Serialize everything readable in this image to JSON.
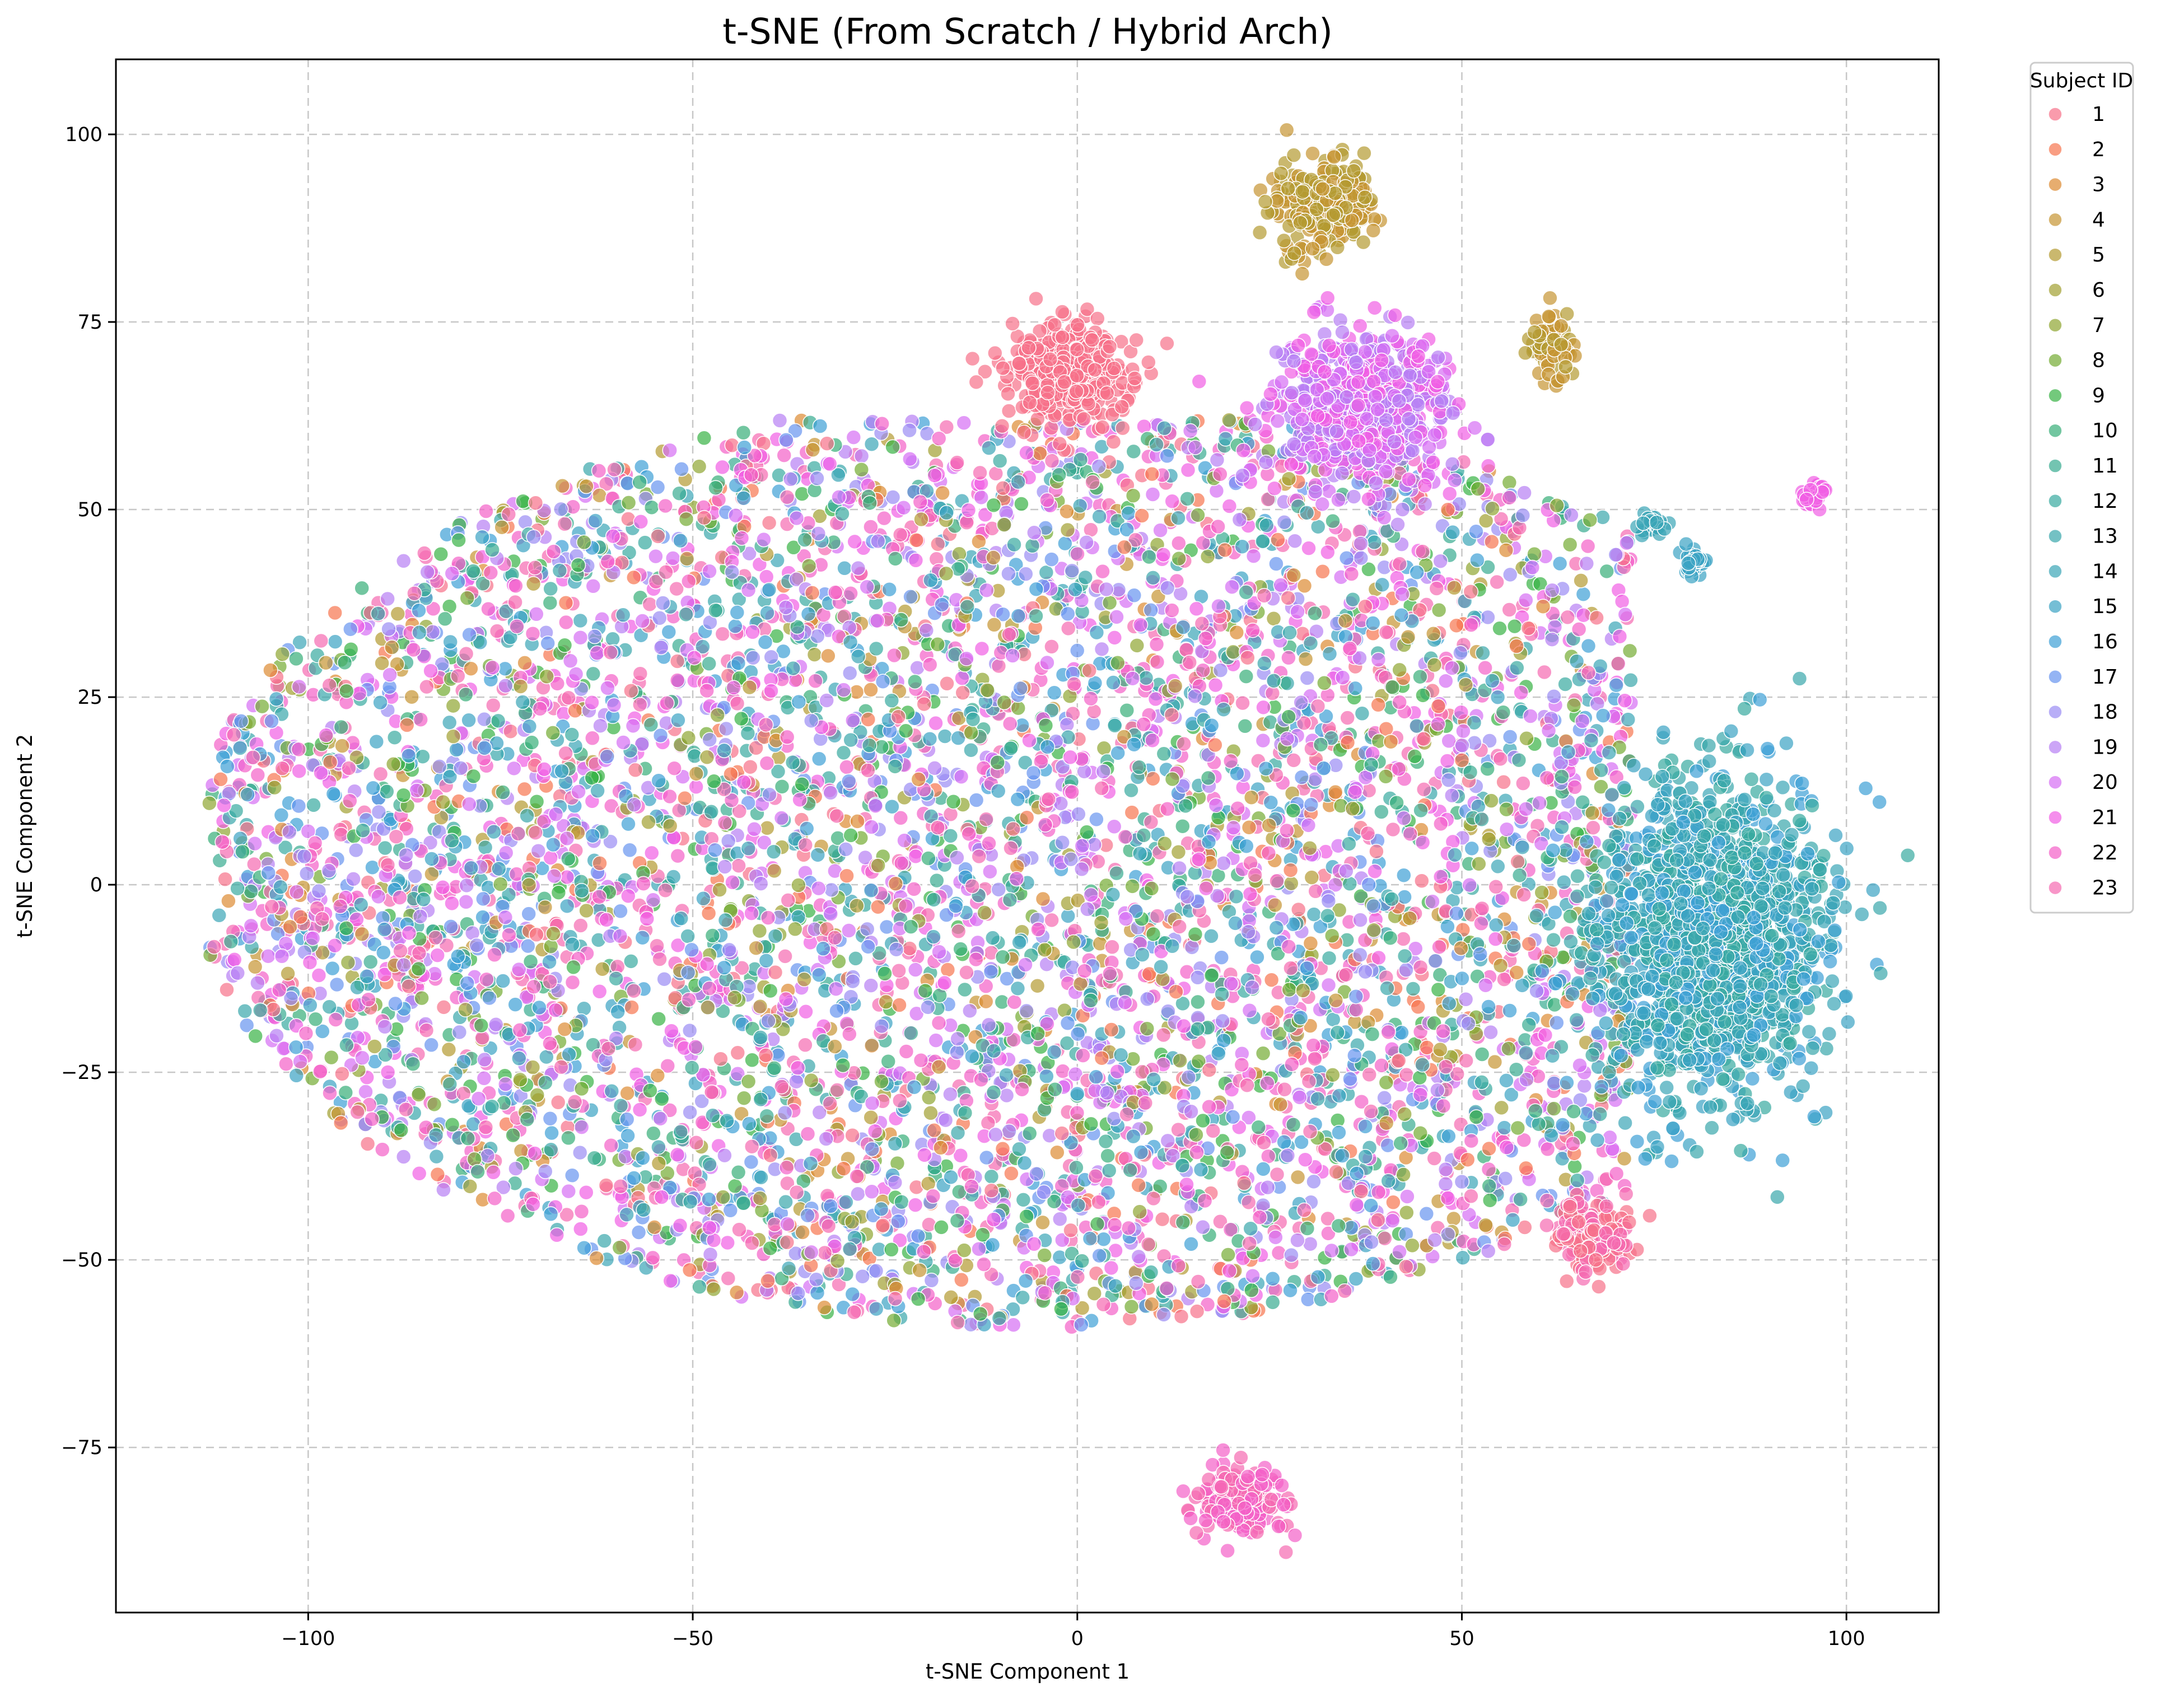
{
  "chart_data": {
    "type": "scatter",
    "title": "t-SNE (From Scratch / Hybrid Arch)",
    "xlabel": "t-SNE Component 1",
    "ylabel": "t-SNE Component 2",
    "xlim": [
      -125,
      112
    ],
    "ylim": [
      -97,
      110
    ],
    "xticks": [
      -100,
      -50,
      0,
      50,
      100
    ],
    "yticks": [
      -75,
      -50,
      -25,
      0,
      25,
      50,
      75,
      100
    ],
    "xtick_labels": [
      "−100",
      "−50",
      "0",
      "50",
      "100"
    ],
    "ytick_labels": [
      "−75",
      "−50",
      "−25",
      "0",
      "25",
      "50",
      "75",
      "100"
    ],
    "grid": true,
    "grid_style": "dashed",
    "legend": {
      "title": "Subject ID",
      "placement": "outside-top-right",
      "entries": [
        {
          "label": "1",
          "color": "#f77189"
        },
        {
          "label": "2",
          "color": "#f7754f"
        },
        {
          "label": "3",
          "color": "#dd8a32"
        },
        {
          "label": "4",
          "color": "#c69432"
        },
        {
          "label": "5",
          "color": "#b39a31"
        },
        {
          "label": "6",
          "color": "#a19f31"
        },
        {
          "label": "7",
          "color": "#8fa531"
        },
        {
          "label": "8",
          "color": "#73ab32"
        },
        {
          "label": "9",
          "color": "#37b244"
        },
        {
          "label": "10",
          "color": "#36ae78"
        },
        {
          "label": "11",
          "color": "#37ab90"
        },
        {
          "label": "12",
          "color": "#38a99f"
        },
        {
          "label": "13",
          "color": "#39a7ab"
        },
        {
          "label": "14",
          "color": "#3aa5b7"
        },
        {
          "label": "15",
          "color": "#3ba3c3"
        },
        {
          "label": "16",
          "color": "#3d9fd5"
        },
        {
          "label": "17",
          "color": "#6694ef"
        },
        {
          "label": "18",
          "color": "#9a8bf4"
        },
        {
          "label": "19",
          "color": "#b77ff4"
        },
        {
          "label": "20",
          "color": "#d66ef3"
        },
        {
          "label": "21",
          "color": "#f15ee4"
        },
        {
          "label": "22",
          "color": "#f45fc7"
        },
        {
          "label": "23",
          "color": "#f56ab0"
        }
      ]
    },
    "marker_opacity": 0.7,
    "marker_edgecolor": "#ffffff",
    "series_note_clusters": [
      {
        "name": "main-mass",
        "subjects": "mixed 1-23",
        "center": [
          -5,
          5
        ],
        "spread": [
          48,
          30
        ]
      },
      {
        "name": "teal-blue-right",
        "subjects": [
          "12",
          "13",
          "14",
          "15",
          "16"
        ],
        "center": [
          82,
          -7
        ],
        "spread": [
          9,
          13
        ]
      },
      {
        "name": "magenta-upper",
        "subjects": [
          "19",
          "20",
          "21"
        ],
        "center": [
          37,
          64
        ],
        "spread": [
          7,
          6
        ]
      },
      {
        "name": "pink-upper",
        "subjects": [
          "1"
        ],
        "center": [
          -1,
          68
        ],
        "spread": [
          5,
          4
        ]
      },
      {
        "name": "gold-top",
        "subjects": [
          "4",
          "5"
        ],
        "center": [
          32,
          90
        ],
        "spread": [
          4,
          4
        ]
      },
      {
        "name": "gold-right",
        "subjects": [
          "4",
          "5"
        ],
        "center": [
          62,
          72
        ],
        "spread": [
          2,
          3
        ]
      },
      {
        "name": "small-teal-a",
        "subjects": [
          "14"
        ],
        "center": [
          75,
          48
        ],
        "spread": [
          1,
          1
        ]
      },
      {
        "name": "small-teal-b",
        "subjects": [
          "15"
        ],
        "center": [
          80,
          43
        ],
        "spread": [
          1,
          1.5
        ]
      },
      {
        "name": "small-pink-far-right",
        "subjects": [
          "21"
        ],
        "center": [
          96,
          52
        ],
        "spread": [
          1,
          1.2
        ]
      },
      {
        "name": "pink-lower-right",
        "subjects": [
          "1",
          "23"
        ],
        "center": [
          67,
          -47
        ],
        "spread": [
          3,
          3
        ]
      },
      {
        "name": "pink-bottom",
        "subjects": [
          "22",
          "23"
        ],
        "center": [
          21,
          -82
        ],
        "spread": [
          4,
          3
        ]
      }
    ]
  }
}
